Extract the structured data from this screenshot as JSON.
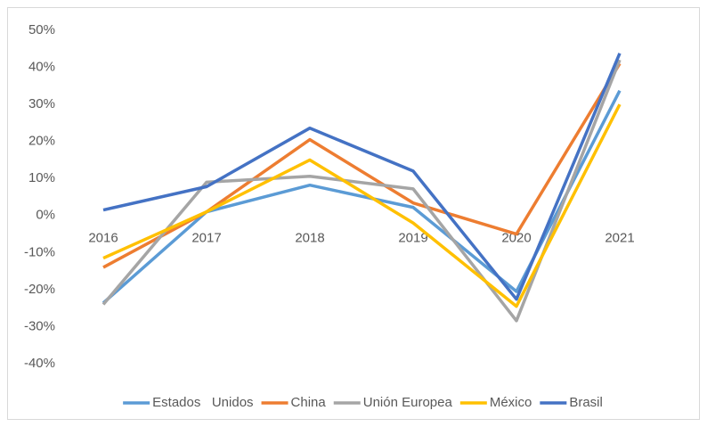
{
  "chart_data": {
    "type": "line",
    "categories": [
      "2016",
      "2017",
      "2018",
      "2019",
      "2020",
      "2021"
    ],
    "series": [
      {
        "name": "Estados   Unidos",
        "color": "#5b9bd5",
        "values": [
          -23.6,
          1,
          8.2,
          2.2,
          -20.5,
          33.7
        ]
      },
      {
        "name": "China",
        "color": "#ed7d31",
        "values": [
          -14,
          1,
          20.5,
          3.4,
          -5,
          41
        ]
      },
      {
        "name": "Unión Europea",
        "color": "#a5a5a5",
        "values": [
          -24,
          9,
          10.6,
          7.2,
          -28.4,
          42
        ]
      },
      {
        "name": "México",
        "color": "#ffc000",
        "values": [
          -11.5,
          1,
          15,
          -2,
          -24.5,
          30
        ]
      },
      {
        "name": "Brasil",
        "color": "#4472c4",
        "values": [
          1.5,
          7.8,
          23.6,
          12,
          -22.6,
          43.8
        ]
      }
    ],
    "ylim": [
      -40,
      50
    ],
    "yticks": [
      {
        "value": -40,
        "label": "-40%"
      },
      {
        "value": -30,
        "label": "-30%"
      },
      {
        "value": -20,
        "label": "-20%"
      },
      {
        "value": -10,
        "label": "-10%"
      },
      {
        "value": 0,
        "label": "0%"
      },
      {
        "value": 10,
        "label": "10%"
      },
      {
        "value": 20,
        "label": "20%"
      },
      {
        "value": 30,
        "label": "30%"
      },
      {
        "value": 40,
        "label": "40%"
      },
      {
        "value": 50,
        "label": "50%"
      }
    ],
    "grid": false,
    "legend": "bottom"
  }
}
